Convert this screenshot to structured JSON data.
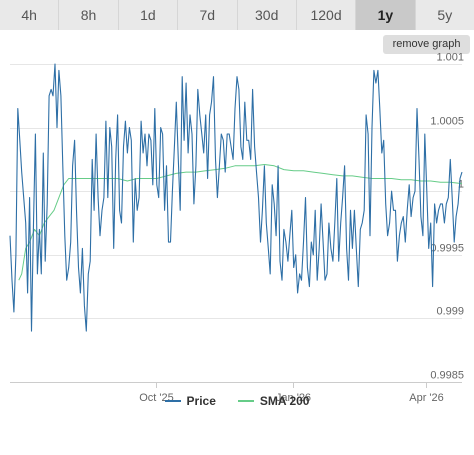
{
  "tabs": [
    {
      "label": "4h",
      "active": false
    },
    {
      "label": "8h",
      "active": false
    },
    {
      "label": "1d",
      "active": false
    },
    {
      "label": "7d",
      "active": false
    },
    {
      "label": "30d",
      "active": false
    },
    {
      "label": "120d",
      "active": false
    },
    {
      "label": "1y",
      "active": true
    },
    {
      "label": "5y",
      "active": false
    }
  ],
  "remove_graph_label": "remove graph",
  "colors": {
    "price": "#2e6fa6",
    "sma": "#66cc88",
    "grid": "#e6e6e6",
    "axis_text": "#666666"
  },
  "chart_data": {
    "type": "line",
    "title": "",
    "xlabel": "",
    "ylabel": "",
    "ylim": [
      0.9985,
      1.001
    ],
    "y_ticks": [
      {
        "value": 1.001,
        "label": "1.001"
      },
      {
        "value": 1.0005,
        "label": "1.0005"
      },
      {
        "value": 1.0,
        "label": "1"
      },
      {
        "value": 0.9995,
        "label": "0.9995"
      },
      {
        "value": 0.999,
        "label": "0.999"
      },
      {
        "value": 0.9985,
        "label": "0.9985"
      }
    ],
    "x_range": [
      "2025-06-25",
      "2026-04-25"
    ],
    "x_ticks": [
      {
        "date": "2025-10-01",
        "label": "Oct '25"
      },
      {
        "date": "2026-01-01",
        "label": "Jan '26"
      },
      {
        "date": "2026-04-01",
        "label": "Apr '26"
      }
    ],
    "legend_position": "bottom-center",
    "grid": true,
    "series": [
      {
        "name": "Price",
        "color": "#2e6fa6",
        "values": [
          [
            0,
            0.99965
          ],
          [
            2,
            0.9993
          ],
          [
            4,
            0.99905
          ],
          [
            6,
            0.9995
          ],
          [
            8,
            1.00065
          ],
          [
            10,
            1.0004
          ],
          [
            12,
            1.00015
          ],
          [
            14,
            0.99995
          ],
          [
            16,
            0.99975
          ],
          [
            18,
            0.9992
          ],
          [
            20,
            0.99995
          ],
          [
            22,
            0.9989
          ],
          [
            24,
            0.99975
          ],
          [
            26,
            1.00045
          ],
          [
            28,
            0.99935
          ],
          [
            30,
            0.9997
          ],
          [
            32,
            0.99935
          ],
          [
            34,
            1.0003
          ],
          [
            36,
            0.99945
          ],
          [
            38,
            0.9999
          ],
          [
            40,
            1.00075
          ],
          [
            42,
            1.0008
          ],
          [
            44,
            1.00075
          ],
          [
            46,
            1.001
          ],
          [
            48,
            1.0005
          ],
          [
            50,
            1.00095
          ],
          [
            52,
            1.00075
          ],
          [
            54,
            1.0002
          ],
          [
            56,
            0.99965
          ],
          [
            58,
            0.9993
          ],
          [
            60,
            0.9994
          ],
          [
            62,
            0.9996
          ],
          [
            64,
            1.0002
          ],
          [
            66,
            1.0004
          ],
          [
            68,
            0.99985
          ],
          [
            70,
            0.9994
          ],
          [
            72,
            0.9992
          ],
          [
            74,
            0.99955
          ],
          [
            76,
            0.9991
          ],
          [
            78,
            0.9989
          ],
          [
            80,
            0.99935
          ],
          [
            82,
            0.99945
          ],
          [
            84,
            1.00025
          ],
          [
            86,
            0.99985
          ],
          [
            88,
            1.00045
          ],
          [
            90,
            0.99995
          ],
          [
            92,
            0.99965
          ],
          [
            94,
            0.99985
          ],
          [
            96,
            0.99995
          ],
          [
            98,
            1.00055
          ],
          [
            100,
            0.99995
          ],
          [
            102,
            1.0005
          ],
          [
            104,
            1.00035
          ],
          [
            106,
            0.99955
          ],
          [
            108,
            1.00025
          ],
          [
            110,
            1.0006
          ],
          [
            112,
            0.99985
          ],
          [
            114,
            0.99975
          ],
          [
            116,
            1.00035
          ],
          [
            118,
            1.00055
          ],
          [
            120,
            1.0003
          ],
          [
            122,
            1.0005
          ],
          [
            124,
            1.0004
          ],
          [
            126,
            0.9996
          ],
          [
            128,
            1.0001
          ],
          [
            130,
            0.99985
          ],
          [
            132,
            0.99995
          ],
          [
            134,
            1.00055
          ],
          [
            136,
            1.0003
          ],
          [
            138,
            1.00045
          ],
          [
            140,
            1.0002
          ],
          [
            142,
            1.00045
          ],
          [
            144,
            1.0004
          ],
          [
            146,
            1.00005
          ],
          [
            148,
            1.00065
          ],
          [
            150,
            1.00005
          ],
          [
            152,
            0.99995
          ],
          [
            154,
            1.0005
          ],
          [
            156,
            1.00045
          ],
          [
            158,
            0.99985
          ],
          [
            160,
            1.0002
          ],
          [
            162,
            0.9996
          ],
          [
            164,
            0.9996
          ],
          [
            166,
            1.0
          ],
          [
            168,
            1.00035
          ],
          [
            170,
            1.0007
          ],
          [
            172,
            1.00025
          ],
          [
            174,
            0.99985
          ],
          [
            176,
            1.0009
          ],
          [
            178,
            1.0004
          ],
          [
            180,
            1.00085
          ],
          [
            182,
            1.0003
          ],
          [
            184,
            1.0006
          ],
          [
            186,
            1.00045
          ],
          [
            188,
            0.9999
          ],
          [
            190,
            1.0002
          ],
          [
            192,
            1.0008
          ],
          [
            194,
            1.0006
          ],
          [
            196,
            1.00045
          ],
          [
            198,
            1.0003
          ],
          [
            200,
            1.0006
          ],
          [
            202,
            1.0001
          ],
          [
            204,
            1.0006
          ],
          [
            206,
            1.0007
          ],
          [
            208,
            1.0009
          ],
          [
            210,
            1.00025
          ],
          [
            212,
            0.99995
          ],
          [
            214,
            1.0002
          ],
          [
            216,
            1.00045
          ],
          [
            218,
            1.0004
          ],
          [
            220,
            1.00015
          ],
          [
            222,
            1.00045
          ],
          [
            224,
            1.00045
          ],
          [
            226,
            1.00035
          ],
          [
            228,
            1.00025
          ],
          [
            230,
            1.00065
          ],
          [
            232,
            1.0009
          ],
          [
            234,
            1.0008
          ],
          [
            236,
            1.00035
          ],
          [
            238,
            1.00025
          ],
          [
            240,
            1.0007
          ],
          [
            242,
            1.0004
          ],
          [
            244,
            1.0004
          ],
          [
            246,
            1.00025
          ],
          [
            248,
            1.0008
          ],
          [
            250,
            1.00035
          ],
          [
            252,
            1.00015
          ],
          [
            254,
            0.99995
          ],
          [
            256,
            0.9996
          ],
          [
            258,
            0.99985
          ],
          [
            260,
            1.0002
          ],
          [
            262,
            0.99975
          ],
          [
            264,
            0.99955
          ],
          [
            266,
            0.99935
          ],
          [
            268,
            1.00005
          ],
          [
            270,
            0.9999
          ],
          [
            272,
            0.99965
          ],
          [
            274,
            1.0002
          ],
          [
            276,
            0.99945
          ],
          [
            278,
            0.9993
          ],
          [
            280,
            0.9997
          ],
          [
            282,
            0.9996
          ],
          [
            284,
            0.99945
          ],
          [
            286,
            0.99965
          ],
          [
            288,
            0.99985
          ],
          [
            290,
            0.9994
          ],
          [
            292,
            0.9995
          ],
          [
            294,
            0.9992
          ],
          [
            296,
            0.99935
          ],
          [
            298,
            0.9993
          ],
          [
            300,
            0.9996
          ],
          [
            302,
            0.99995
          ],
          [
            304,
            0.9994
          ],
          [
            306,
            0.99925
          ],
          [
            308,
            0.9996
          ],
          [
            310,
            0.9995
          ],
          [
            312,
            0.99985
          ],
          [
            314,
            0.9993
          ],
          [
            316,
            0.99955
          ],
          [
            318,
            0.9999
          ],
          [
            320,
            0.9996
          ],
          [
            322,
            0.9993
          ],
          [
            324,
            0.99935
          ],
          [
            326,
            0.99975
          ],
          [
            328,
            0.99955
          ],
          [
            330,
            0.99945
          ],
          [
            332,
            0.99975
          ],
          [
            334,
            1.0001
          ],
          [
            336,
            0.99945
          ],
          [
            338,
            0.99975
          ],
          [
            340,
            0.99995
          ],
          [
            342,
            1.0002
          ],
          [
            344,
            0.99955
          ],
          [
            346,
            0.9993
          ],
          [
            348,
            0.99985
          ],
          [
            350,
            0.99955
          ],
          [
            352,
            0.99985
          ],
          [
            354,
            0.99955
          ],
          [
            356,
            0.99925
          ],
          [
            358,
            0.9997
          ],
          [
            360,
            0.99975
          ],
          [
            362,
            0.99985
          ],
          [
            364,
            1.0006
          ],
          [
            366,
            1.00045
          ],
          [
            368,
            0.99965
          ],
          [
            370,
            1.0005
          ],
          [
            372,
            1.00095
          ],
          [
            374,
            1.00085
          ],
          [
            376,
            1.00095
          ],
          [
            378,
            1.00065
          ],
          [
            380,
            1.0003
          ],
          [
            382,
            1.0004
          ],
          [
            384,
            0.9999
          ],
          [
            386,
            0.99965
          ],
          [
            388,
            0.99975
          ],
          [
            390,
            1.0
          ],
          [
            392,
            0.99985
          ],
          [
            394,
            0.99985
          ],
          [
            396,
            0.99945
          ],
          [
            398,
            0.99965
          ],
          [
            400,
            0.99975
          ],
          [
            402,
            0.9998
          ],
          [
            404,
            0.9996
          ],
          [
            406,
            0.99985
          ],
          [
            408,
            1.00005
          ],
          [
            410,
            0.9998
          ],
          [
            412,
            0.99995
          ],
          [
            414,
            1.0
          ],
          [
            416,
            1.00065
          ],
          [
            418,
            1.00025
          ],
          [
            420,
            0.9998
          ],
          [
            422,
            0.99965
          ],
          [
            424,
            1.00045
          ],
          [
            426,
            1.0
          ],
          [
            428,
            0.99955
          ],
          [
            430,
            0.99975
          ],
          [
            432,
            0.99925
          ],
          [
            434,
            0.9999
          ],
          [
            436,
            0.99975
          ],
          [
            438,
            0.99985
          ],
          [
            440,
            0.9999
          ],
          [
            442,
            0.9999
          ],
          [
            444,
            0.99975
          ],
          [
            446,
            0.9999
          ],
          [
            448,
            0.99995
          ],
          [
            450,
            1.00025
          ],
          [
            452,
            0.99995
          ],
          [
            454,
            0.9996
          ],
          [
            456,
            0.9998
          ],
          [
            458,
            0.9999
          ],
          [
            460,
            1.0001
          ],
          [
            462,
            1.00015
          ]
        ]
      },
      {
        "name": "SMA 200",
        "color": "#66cc88",
        "values": [
          [
            9,
            0.9993
          ],
          [
            12,
            0.99935
          ],
          [
            16,
            0.99955
          ],
          [
            20,
            0.9996
          ],
          [
            25,
            0.9997
          ],
          [
            30,
            0.99965
          ],
          [
            35,
            0.99975
          ],
          [
            40,
            0.9998
          ],
          [
            45,
            0.99985
          ],
          [
            50,
            0.99995
          ],
          [
            55,
            1.00005
          ],
          [
            60,
            1.0001
          ],
          [
            70,
            1.0001
          ],
          [
            80,
            1.0001
          ],
          [
            90,
            1.0001
          ],
          [
            100,
            1.0001
          ],
          [
            110,
            1.0001
          ],
          [
            120,
            1.00008
          ],
          [
            130,
            1.0001
          ],
          [
            140,
            1.0001
          ],
          [
            150,
            1.0001
          ],
          [
            160,
            1.00012
          ],
          [
            170,
            1.00014
          ],
          [
            180,
            1.00015
          ],
          [
            190,
            1.00015
          ],
          [
            200,
            1.00016
          ],
          [
            210,
            1.00017
          ],
          [
            220,
            1.00018
          ],
          [
            230,
            1.0002
          ],
          [
            240,
            1.0002
          ],
          [
            250,
            1.0002
          ],
          [
            260,
            1.00021
          ],
          [
            270,
            1.0002
          ],
          [
            280,
            1.00017
          ],
          [
            290,
            1.00016
          ],
          [
            300,
            1.00016
          ],
          [
            310,
            1.00015
          ],
          [
            320,
            1.00014
          ],
          [
            330,
            1.00013
          ],
          [
            340,
            1.00012
          ],
          [
            350,
            1.00012
          ],
          [
            360,
            1.00011
          ],
          [
            370,
            1.0001
          ],
          [
            380,
            1.0001
          ],
          [
            390,
            1.0001
          ],
          [
            400,
            1.00009
          ],
          [
            410,
            1.00009
          ],
          [
            420,
            1.00008
          ],
          [
            430,
            1.00008
          ],
          [
            440,
            1.00007
          ],
          [
            450,
            1.00007
          ],
          [
            462,
            1.00006
          ]
        ]
      }
    ]
  }
}
